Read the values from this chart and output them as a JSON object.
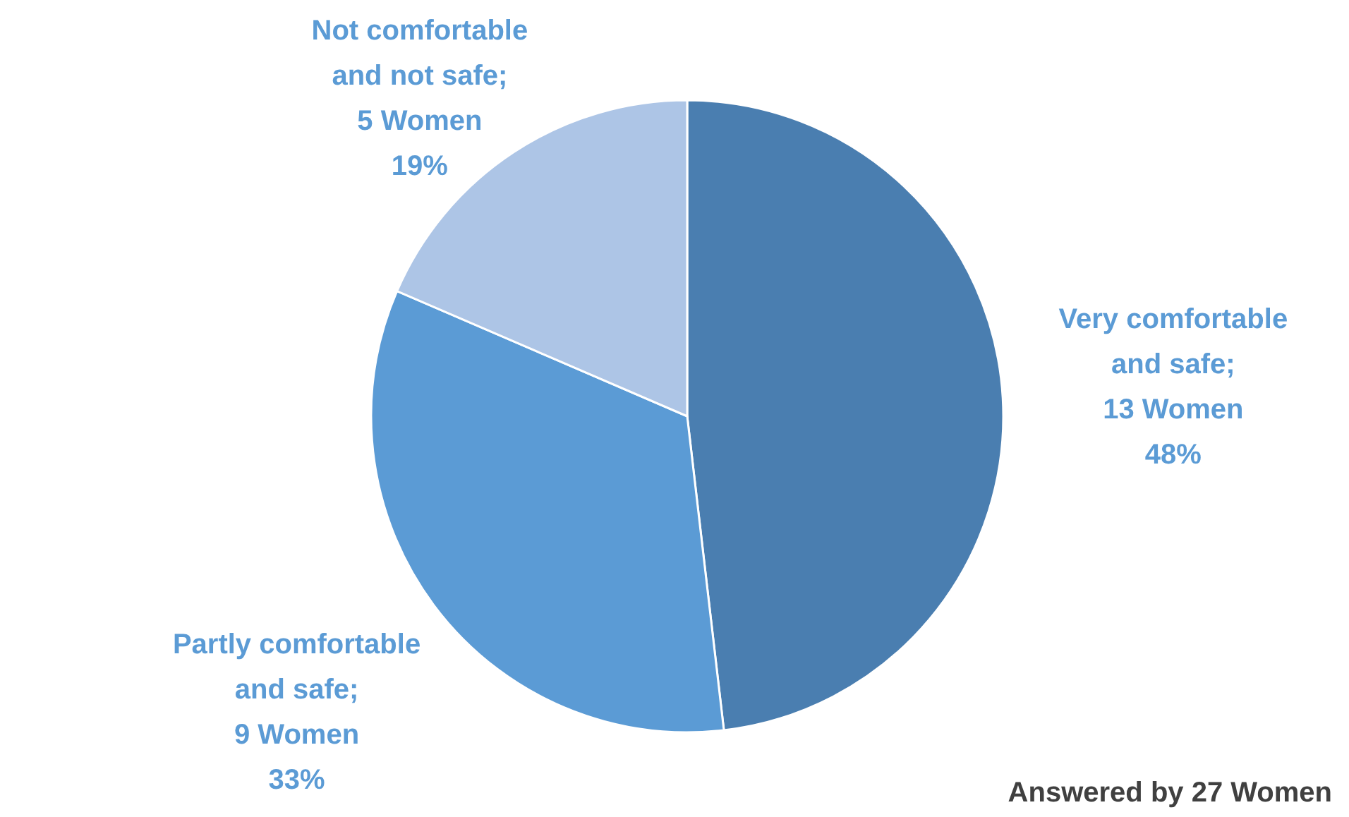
{
  "chart_data": {
    "type": "pie",
    "categories": [
      "Very comfortable and safe",
      "Partly comfortable and safe",
      "Not comfortable and not safe"
    ],
    "values": [
      13,
      9,
      5
    ],
    "colors": [
      "#4a7eb0",
      "#5b9bd5",
      "#adc5e6"
    ],
    "value_labels": [
      ";\n13 Women\n48%",
      ";\n9 Women\n33%",
      ";\n5 Women\n19%"
    ],
    "annotations": [
      "Answered by 27 Women"
    ]
  }
}
